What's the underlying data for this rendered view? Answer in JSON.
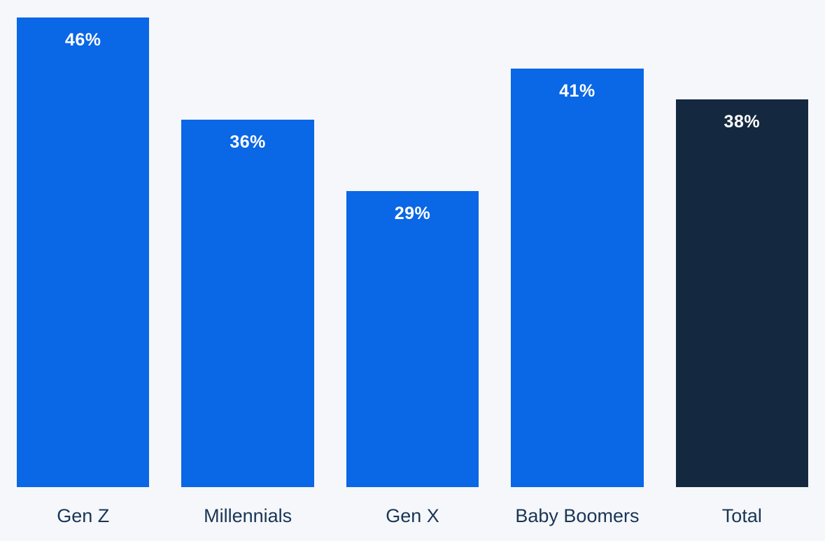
{
  "chart_data": {
    "type": "bar",
    "categories": [
      "Gen Z",
      "Millennials",
      "Gen X",
      "Baby Boomers",
      "Total"
    ],
    "values": [
      46,
      36,
      29,
      41,
      38
    ],
    "value_labels": [
      "46%",
      "36%",
      "29%",
      "41%",
      "38%"
    ],
    "title": "",
    "xlabel": "",
    "ylabel": "",
    "ylim": [
      0,
      46
    ],
    "grid": false,
    "legend": false,
    "bar_colors": [
      "#0a67e6",
      "#0a67e6",
      "#0a67e6",
      "#0a67e6",
      "#142940"
    ],
    "colors": {
      "background": "#f5f7fa",
      "value_label": "#ffffff",
      "category_label": "#1a3556",
      "primary_blue": "#0a67e6",
      "dark_navy": "#142940"
    }
  }
}
